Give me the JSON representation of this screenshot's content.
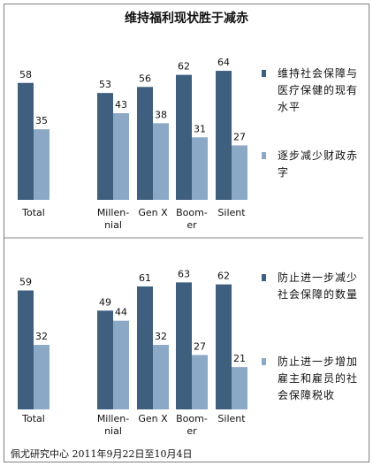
{
  "title": "维持福利现状胜于减赤",
  "colors": {
    "dark": "#3f5f7e",
    "light": "#8ba9c7"
  },
  "chart_data": [
    {
      "type": "bar",
      "categories": [
        "Total",
        "Millennial",
        "Gen X",
        "Boomer",
        "Silent"
      ],
      "category_labels": [
        [
          "Total"
        ],
        [
          "Millen-",
          "nial"
        ],
        [
          "Gen X"
        ],
        [
          "Boom-",
          "er"
        ],
        [
          "Silent"
        ]
      ],
      "series": [
        {
          "name": "维持社会保障与医疗保健的现有水平",
          "values": [
            58,
            53,
            56,
            62,
            64
          ]
        },
        {
          "name": "逐步减少财政赤字",
          "values": [
            35,
            43,
            38,
            31,
            27
          ]
        }
      ],
      "legend": [
        [
          "维持社会保障与",
          "医疗保健的现有",
          "水平"
        ],
        [
          "逐步减少财政赤",
          "字"
        ]
      ],
      "legend_placement": "right",
      "ylim": [
        0,
        70
      ]
    },
    {
      "type": "bar",
      "categories": [
        "Total",
        "Millennial",
        "Gen X",
        "Boomer",
        "Silent"
      ],
      "category_labels": [
        [
          "Total"
        ],
        [
          "Millen-",
          "nial"
        ],
        [
          "Gen X"
        ],
        [
          "Boom-",
          "er"
        ],
        [
          "Silent"
        ]
      ],
      "series": [
        {
          "name": "防止进一步减少社会保障的数量",
          "values": [
            59,
            49,
            61,
            63,
            62
          ]
        },
        {
          "name": "防止进一步增加雇主和雇员的社会保障税收",
          "values": [
            32,
            44,
            32,
            27,
            21
          ]
        }
      ],
      "legend": [
        [
          "防止进一步减少",
          "社会保障的数量"
        ],
        [
          "防止进一步增加",
          "雇主和雇员的社",
          "会保障税收"
        ]
      ],
      "legend_placement": "right",
      "ylim": [
        0,
        70
      ]
    }
  ],
  "footer": "佩尤研究中心 2011年9月22日至10月4日"
}
